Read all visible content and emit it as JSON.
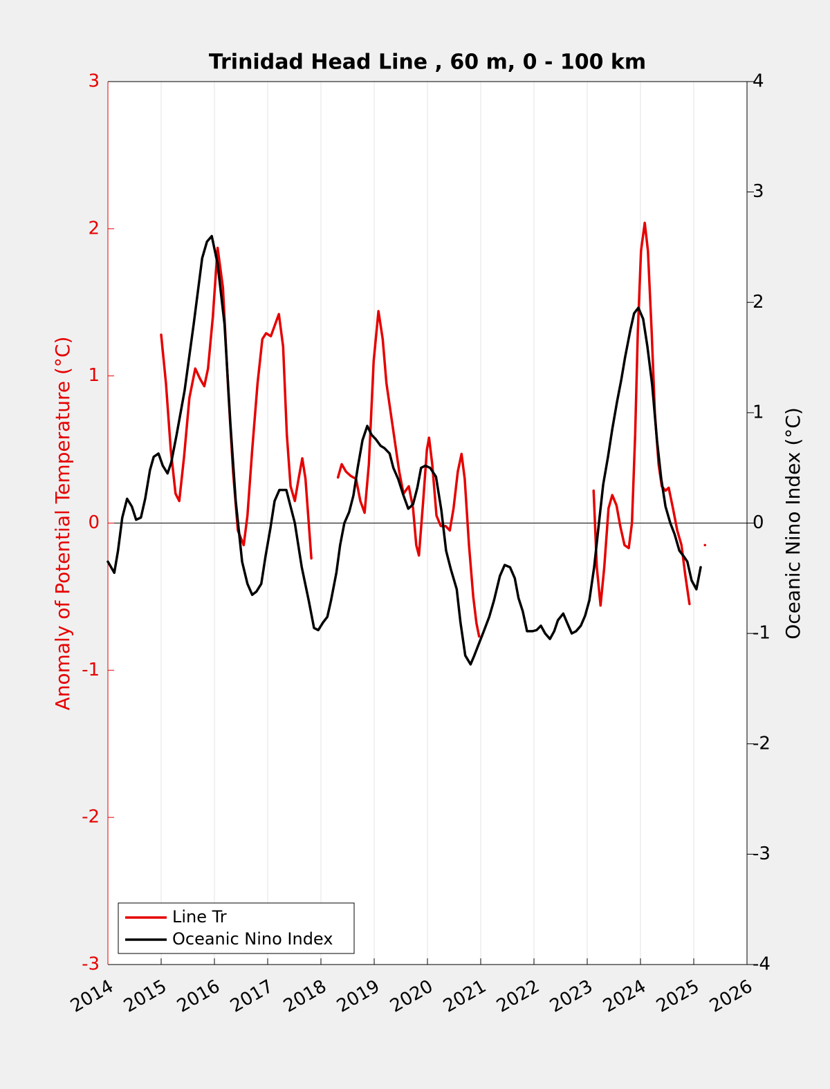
{
  "chart_data": {
    "type": "line",
    "title": "Trinidad Head Line , 60 m, 0 - 100 km",
    "ylabel": "Anomaly of Potential Temperature (°C)",
    "y2label": "Oceanic Nino Index (°C)",
    "xlim": [
      2014,
      2026
    ],
    "xticks": [
      2014,
      2015,
      2016,
      2017,
      2018,
      2019,
      2020,
      2021,
      2022,
      2023,
      2024,
      2025,
      2026
    ],
    "ylim": [
      -3,
      3
    ],
    "yticks": [
      -3,
      -2,
      -1,
      0,
      1,
      2,
      3
    ],
    "y2lim": [
      -4,
      4
    ],
    "y2ticks": [
      -4,
      -3,
      -2,
      -1,
      0,
      1,
      2,
      3,
      4
    ],
    "grid": "x",
    "legend": "lower left",
    "series": [
      {
        "name": "Line Tr",
        "color": "#e60000",
        "x": [
          2015.0,
          2015.09,
          2015.18,
          2015.27,
          2015.34,
          2015.43,
          2015.53,
          2015.64,
          2015.73,
          2015.81,
          2015.88,
          2015.97,
          2016.06,
          2016.16,
          2016.26,
          2016.35,
          2016.44,
          2016.55,
          2016.62,
          2016.71,
          2016.81,
          2016.9,
          2016.97,
          2017.06,
          2017.14,
          2017.21,
          2017.29,
          2017.36,
          2017.43,
          2017.51,
          2017.58,
          2017.65,
          2017.71,
          2017.82,
          2018.1,
          2018.32,
          2018.39,
          2018.47,
          2018.56,
          2018.66,
          2018.74,
          2018.82,
          2018.9,
          2018.99,
          2019.08,
          2019.16,
          2019.23,
          2019.31,
          2019.39,
          2019.47,
          2019.55,
          2019.65,
          2019.73,
          2019.79,
          2019.84,
          2019.92,
          2019.99,
          2020.03,
          2020.09,
          2020.17,
          2020.25,
          2020.34,
          2020.42,
          2020.49,
          2020.57,
          2020.64,
          2020.7,
          2020.78,
          2020.86,
          2020.92,
          2020.97,
          2021.5,
          2023.12,
          2023.18,
          2023.25,
          2023.32,
          2023.4,
          2023.47,
          2023.55,
          2023.62,
          2023.7,
          2023.78,
          2023.84,
          2023.9,
          2023.95,
          2024.01,
          2024.08,
          2024.14,
          2024.21,
          2024.27,
          2024.34,
          2024.4,
          2024.47,
          2024.53,
          2024.61,
          2024.69,
          2024.77,
          2024.84,
          2024.92,
          2025.05,
          2025.21
        ],
        "values": [
          1.28,
          0.95,
          0.5,
          0.2,
          0.15,
          0.45,
          0.85,
          1.05,
          0.98,
          0.93,
          1.05,
          1.4,
          1.87,
          1.6,
          0.9,
          0.35,
          -0.05,
          -0.15,
          0.05,
          0.5,
          0.95,
          1.25,
          1.29,
          1.27,
          1.35,
          1.42,
          1.2,
          0.6,
          0.25,
          0.15,
          0.3,
          0.44,
          0.3,
          -0.24,
          null,
          0.31,
          0.4,
          0.35,
          0.32,
          0.3,
          0.15,
          0.07,
          0.4,
          1.1,
          1.44,
          1.25,
          0.95,
          0.75,
          0.55,
          0.35,
          0.2,
          0.25,
          0.1,
          -0.15,
          -0.22,
          0.15,
          0.5,
          0.58,
          0.4,
          0.05,
          -0.02,
          -0.02,
          -0.05,
          0.1,
          0.35,
          0.47,
          0.3,
          -0.15,
          -0.5,
          -0.68,
          -0.77,
          null,
          0.22,
          -0.3,
          -0.56,
          -0.3,
          0.1,
          0.19,
          0.12,
          -0.02,
          -0.15,
          -0.17,
          0.0,
          0.6,
          1.3,
          1.85,
          2.04,
          1.85,
          1.3,
          0.75,
          0.4,
          0.25,
          0.22,
          0.24,
          0.1,
          -0.05,
          -0.15,
          -0.35,
          -0.55,
          null,
          -0.15
        ]
      },
      {
        "name": "Oceanic Nino Index",
        "color": "#000000",
        "axis": "y2",
        "x": [
          2014.0,
          2014.12,
          2014.19,
          2014.27,
          2014.36,
          2014.45,
          2014.53,
          2014.62,
          2014.7,
          2014.79,
          2014.86,
          2014.95,
          2015.03,
          2015.12,
          2015.19,
          2015.29,
          2015.44,
          2015.61,
          2015.77,
          2015.86,
          2015.95,
          2016.06,
          2016.19,
          2016.3,
          2016.4,
          2016.52,
          2016.62,
          2016.71,
          2016.79,
          2016.88,
          2016.96,
          2017.05,
          2017.13,
          2017.22,
          2017.35,
          2017.51,
          2017.64,
          2017.77,
          2017.87,
          2017.95,
          2018.04,
          2018.12,
          2018.19,
          2018.29,
          2018.36,
          2018.44,
          2018.53,
          2018.61,
          2018.69,
          2018.78,
          2018.87,
          2018.95,
          2019.03,
          2019.12,
          2019.19,
          2019.29,
          2019.36,
          2019.45,
          2019.55,
          2019.64,
          2019.73,
          2019.81,
          2019.88,
          2019.96,
          2020.05,
          2020.16,
          2020.26,
          2020.35,
          2020.44,
          2020.55,
          2020.62,
          2020.71,
          2020.81,
          2020.88,
          2020.96,
          2021.05,
          2021.16,
          2021.25,
          2021.36,
          2021.45,
          2021.55,
          2021.64,
          2021.71,
          2021.79,
          2021.87,
          2021.97,
          2022.05,
          2022.13,
          2022.21,
          2022.3,
          2022.38,
          2022.45,
          2022.55,
          2022.62,
          2022.71,
          2022.79,
          2022.88,
          2022.96,
          2023.04,
          2023.13,
          2023.22,
          2023.3,
          2023.39,
          2023.47,
          2023.56,
          2023.64,
          2023.71,
          2023.81,
          2023.88,
          2023.96,
          2024.05,
          2024.13,
          2024.22,
          2024.31,
          2024.39,
          2024.47,
          2024.56,
          2024.64,
          2024.73,
          2024.81,
          2024.88,
          2024.96,
          2025.05,
          2025.13
        ],
        "values": [
          -0.35,
          -0.45,
          -0.25,
          0.05,
          0.22,
          0.15,
          0.03,
          0.05,
          0.22,
          0.48,
          0.6,
          0.63,
          0.52,
          0.45,
          0.55,
          0.8,
          1.2,
          1.8,
          2.4,
          2.55,
          2.6,
          2.35,
          1.8,
          0.9,
          0.2,
          -0.35,
          -0.55,
          -0.65,
          -0.62,
          -0.55,
          -0.3,
          -0.05,
          0.2,
          0.3,
          0.3,
          0.0,
          -0.4,
          -0.7,
          -0.95,
          -0.97,
          -0.9,
          -0.85,
          -0.7,
          -0.45,
          -0.2,
          0.0,
          0.1,
          0.25,
          0.5,
          0.75,
          0.88,
          0.8,
          0.76,
          0.7,
          0.68,
          0.63,
          0.5,
          0.4,
          0.25,
          0.13,
          0.17,
          0.32,
          0.5,
          0.52,
          0.5,
          0.42,
          0.12,
          -0.25,
          -0.42,
          -0.6,
          -0.9,
          -1.2,
          -1.28,
          -1.2,
          -1.1,
          -0.99,
          -0.85,
          -0.7,
          -0.48,
          -0.38,
          -0.4,
          -0.5,
          -0.68,
          -0.8,
          -0.98,
          -0.98,
          -0.97,
          -0.93,
          -1.0,
          -1.05,
          -0.98,
          -0.88,
          -0.82,
          -0.9,
          -1.0,
          -0.98,
          -0.93,
          -0.84,
          -0.7,
          -0.4,
          0.0,
          0.35,
          0.6,
          0.85,
          1.1,
          1.3,
          1.5,
          1.75,
          1.9,
          1.95,
          1.85,
          1.6,
          1.25,
          0.75,
          0.4,
          0.15,
          0.0,
          -0.1,
          -0.25,
          -0.3,
          -0.35,
          -0.52,
          -0.6,
          -0.4
        ]
      }
    ]
  }
}
